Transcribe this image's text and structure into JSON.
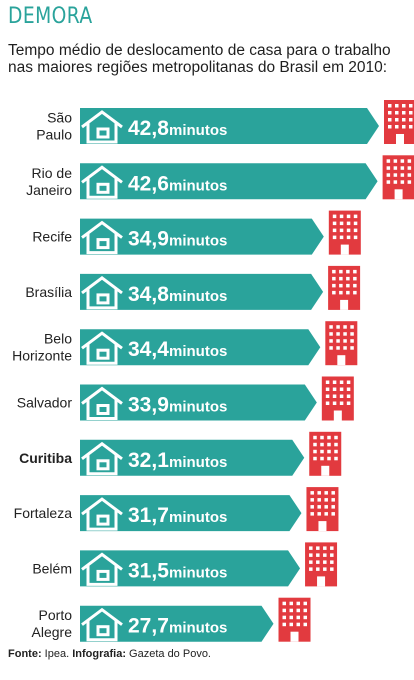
{
  "header": {
    "title": "DEMORA",
    "subtitle": "Tempo médio de deslocamento de casa para o trabalho nas maiores regiões metropolitanas do Brasil em 2010:"
  },
  "footer": {
    "source_label": "Fonte:",
    "source_value": "Ipea.",
    "credit_label": "Infografia:",
    "credit_value": "Gazeta do Povo."
  },
  "colors": {
    "title": "#2aa39b",
    "bar": "#2aa39b",
    "house": "#ffffff",
    "building": "#e23a3f"
  },
  "icons": {
    "origin": "house-icon",
    "destination": "building-icon"
  },
  "chart_data": {
    "type": "bar",
    "orientation": "horizontal",
    "unit": "minutos",
    "categories": [
      [
        "São",
        "Paulo"
      ],
      [
        "Rio de",
        "Janeiro"
      ],
      [
        "Recife"
      ],
      [
        "Brasília"
      ],
      [
        "Belo",
        "Horizonte"
      ],
      [
        "Salvador"
      ],
      [
        "Curitiba"
      ],
      [
        "Fortaleza"
      ],
      [
        "Belém"
      ],
      [
        "Porto",
        "Alegre"
      ]
    ],
    "value_labels": [
      "42,8",
      "42,6",
      "34,9",
      "34,8",
      "34,4",
      "33,9",
      "32,1",
      "31,7",
      "31,5",
      "27,7"
    ],
    "values": [
      42.8,
      42.6,
      34.9,
      34.8,
      34.4,
      33.9,
      32.1,
      31.7,
      31.5,
      27.7
    ],
    "highlight": "Curitiba"
  }
}
